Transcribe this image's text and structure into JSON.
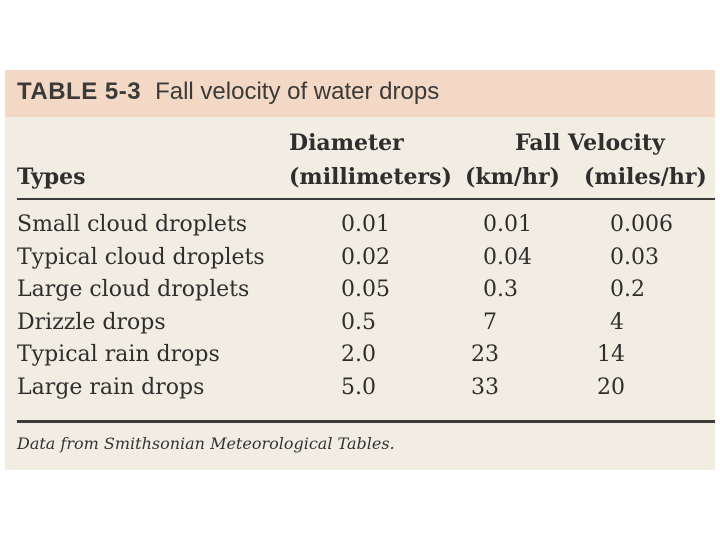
{
  "table": {
    "number": "TABLE 5-3",
    "caption": "Fall velocity of water drops",
    "headers": {
      "types": "Types",
      "diameter_top": "Diameter",
      "diameter_unit": "(millimeters)",
      "fall_velocity": "Fall Velocity",
      "kmhr": "(km/hr)",
      "mileshr": "(miles/hr)"
    },
    "rows": [
      {
        "type": "Small cloud droplets",
        "diameter": "0.01",
        "kmhr": "0.01",
        "mileshr": "0.006"
      },
      {
        "type": "Typical cloud droplets",
        "diameter": "0.02",
        "kmhr": "0.04",
        "mileshr": "0.03"
      },
      {
        "type": "Large cloud droplets",
        "diameter": "0.05",
        "kmhr": "0.3",
        "mileshr": "0.2"
      },
      {
        "type": "Drizzle drops",
        "diameter": "0.5",
        "kmhr": "7",
        "mileshr": "4"
      },
      {
        "type": "Typical rain drops",
        "diameter": "2.0",
        "kmhr": "23",
        "mileshr": "14"
      },
      {
        "type": "Large rain drops",
        "diameter": "5.0",
        "kmhr": "33",
        "mileshr": "20"
      }
    ],
    "source_note": "Data from Smithsonian Meteorological Tables."
  },
  "colors": {
    "title_band": "#f3d9c5",
    "table_background": "#f1ede3",
    "rule": "#3a3a3a"
  }
}
